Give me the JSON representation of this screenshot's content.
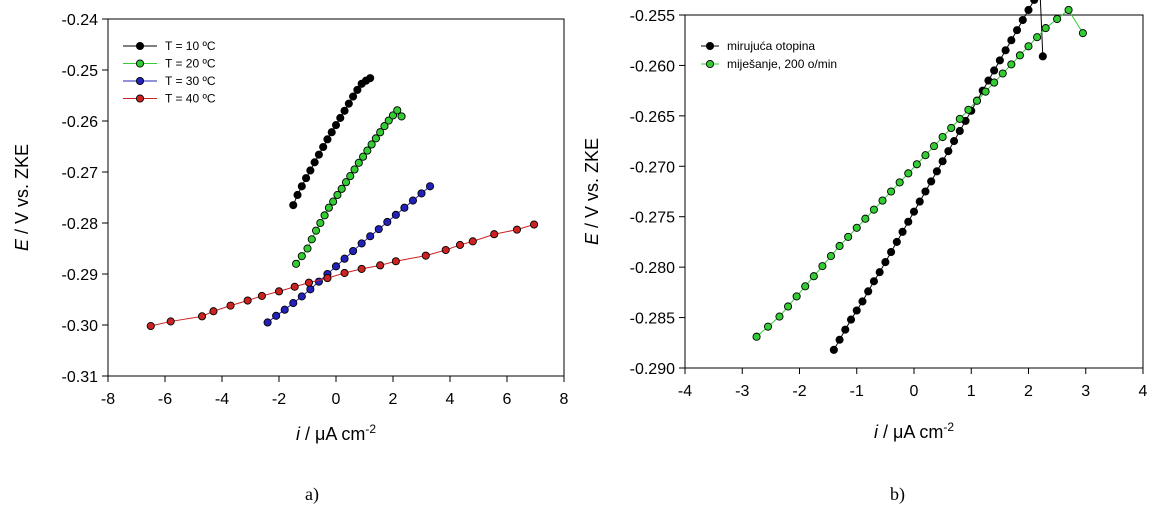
{
  "chart_data": [
    {
      "type": "line",
      "panel_label": "a)",
      "xlabel": {
        "var": "i",
        "rest": " / μA cm",
        "sup": "-2"
      },
      "ylabel": {
        "var": "E",
        "rest": " / V vs. ZKE"
      },
      "xlim": [
        -8,
        8
      ],
      "ylim": [
        -0.31,
        -0.24
      ],
      "xticks": [
        -8,
        -6,
        -4,
        -2,
        0,
        2,
        4,
        6,
        8
      ],
      "xtick_labels": [
        "-8",
        "-6",
        "-4",
        "-2",
        "0",
        "2",
        "4",
        "6",
        "8"
      ],
      "yticks": [
        -0.31,
        -0.3,
        -0.29,
        -0.28,
        -0.27,
        -0.26,
        -0.25,
        -0.24
      ],
      "ytick_labels": [
        "-0.31",
        "-0.30",
        "-0.29",
        "-0.28",
        "-0.27",
        "-0.26",
        "-0.25",
        "-0.24"
      ],
      "grid": false,
      "legend_position": "top-left",
      "series": [
        {
          "name": "T = 10 ºC",
          "color": "#000000",
          "marker_fill": "#000000",
          "line_color": "#000000",
          "x": [
            -1.5,
            -1.35,
            -1.2,
            -1.05,
            -0.9,
            -0.75,
            -0.6,
            -0.45,
            -0.3,
            -0.15,
            0.0,
            0.15,
            0.3,
            0.45,
            0.6,
            0.75,
            0.9,
            1.05,
            1.2
          ],
          "y": [
            -0.2765,
            -0.2745,
            -0.2728,
            -0.2712,
            -0.2697,
            -0.2681,
            -0.2666,
            -0.2651,
            -0.2636,
            -0.2622,
            -0.2608,
            -0.2594,
            -0.258,
            -0.2566,
            -0.2552,
            -0.2539,
            -0.2527,
            -0.2521,
            -0.2516
          ]
        },
        {
          "name": "T = 20 ºC",
          "color": "#33cc33",
          "marker_fill": "#33cc33",
          "line_color": "#33cc33",
          "x": [
            -1.4,
            -1.2,
            -1.0,
            -0.85,
            -0.7,
            -0.55,
            -0.4,
            -0.25,
            -0.1,
            0.05,
            0.2,
            0.35,
            0.5,
            0.65,
            0.8,
            0.95,
            1.1,
            1.25,
            1.4,
            1.55,
            1.7,
            1.85,
            2.0,
            2.15,
            2.3
          ],
          "y": [
            -0.288,
            -0.2865,
            -0.285,
            -0.2832,
            -0.2815,
            -0.28,
            -0.2785,
            -0.277,
            -0.2758,
            -0.2745,
            -0.2733,
            -0.272,
            -0.2708,
            -0.2695,
            -0.2682,
            -0.267,
            -0.2658,
            -0.2646,
            -0.2634,
            -0.2622,
            -0.261,
            -0.2599,
            -0.2589,
            -0.2579,
            -0.2591
          ]
        },
        {
          "name": "T = 30 ºC",
          "color": "#1a1aaa",
          "marker_fill": "#2222bb",
          "line_color": "#2222bb",
          "x": [
            -2.4,
            -2.1,
            -1.8,
            -1.5,
            -1.2,
            -0.9,
            -0.6,
            -0.3,
            0.0,
            0.3,
            0.6,
            0.9,
            1.2,
            1.5,
            1.8,
            2.1,
            2.4,
            2.7,
            3.0,
            3.3
          ],
          "y": [
            -0.2995,
            -0.2982,
            -0.297,
            -0.2957,
            -0.2944,
            -0.293,
            -0.2915,
            -0.29,
            -0.2885,
            -0.287,
            -0.2855,
            -0.284,
            -0.2826,
            -0.2812,
            -0.2798,
            -0.2784,
            -0.277,
            -0.2756,
            -0.2742,
            -0.2728
          ]
        },
        {
          "name": "T = 40 ºC",
          "color": "#cc2222",
          "marker_fill": "#cc2222",
          "line_color": "#cc2222",
          "x": [
            -6.5,
            -5.8,
            -4.7,
            -4.3,
            -3.7,
            -3.1,
            -2.6,
            -2.0,
            -1.45,
            -0.95,
            -0.3,
            0.3,
            0.9,
            1.55,
            2.1,
            3.15,
            3.85,
            4.35,
            4.8,
            5.55,
            6.35,
            6.95
          ],
          "y": [
            -0.3002,
            -0.2993,
            -0.2983,
            -0.2973,
            -0.2962,
            -0.2952,
            -0.2943,
            -0.2934,
            -0.2925,
            -0.2917,
            -0.2908,
            -0.2898,
            -0.289,
            -0.2883,
            -0.2875,
            -0.2864,
            -0.2853,
            -0.2843,
            -0.2836,
            -0.2822,
            -0.2813,
            -0.2803
          ]
        }
      ]
    },
    {
      "type": "line",
      "panel_label": "b)",
      "xlabel": {
        "var": "i",
        "rest": " / μA cm",
        "sup": "-2"
      },
      "ylabel": {
        "var": "E",
        "rest": " / V vs. ZKE"
      },
      "xlim": [
        -4,
        4
      ],
      "ylim": [
        -0.29,
        -0.255
      ],
      "xticks": [
        -4,
        -3,
        -2,
        -1,
        0,
        1,
        2,
        3,
        4
      ],
      "xtick_labels": [
        "-4",
        "-3",
        "-2",
        "-1",
        "0",
        "1",
        "2",
        "3",
        "4"
      ],
      "yticks": [
        -0.29,
        -0.285,
        -0.28,
        -0.275,
        -0.27,
        -0.265,
        -0.26,
        -0.255
      ],
      "ytick_labels": [
        "-0.290",
        "-0.285",
        "-0.280",
        "-0.275",
        "-0.270",
        "-0.265",
        "-0.260",
        "-0.255"
      ],
      "grid": false,
      "legend_position": "top-left",
      "series": [
        {
          "name": "mirujuća otopina",
          "color": "#000000",
          "marker_fill": "#000000",
          "line_color": "#000000",
          "x": [
            -1.4,
            -1.3,
            -1.2,
            -1.1,
            -1.0,
            -0.9,
            -0.8,
            -0.7,
            -0.6,
            -0.5,
            -0.4,
            -0.3,
            -0.2,
            -0.1,
            0.0,
            0.1,
            0.2,
            0.3,
            0.4,
            0.5,
            0.6,
            0.7,
            0.8,
            0.9,
            1.0,
            1.1,
            1.2,
            1.3,
            1.4,
            1.5,
            1.6,
            1.7,
            1.8,
            1.9,
            2.0,
            2.1,
            2.2,
            2.25
          ],
          "y": [
            -0.2882,
            -0.2872,
            -0.2862,
            -0.2852,
            -0.2843,
            -0.2834,
            -0.2824,
            -0.2814,
            -0.2805,
            -0.2795,
            -0.2785,
            -0.2775,
            -0.2765,
            -0.2755,
            -0.2745,
            -0.2735,
            -0.2725,
            -0.2715,
            -0.2705,
            -0.2695,
            -0.2685,
            -0.2675,
            -0.2665,
            -0.2655,
            -0.2645,
            -0.2635,
            -0.2625,
            -0.2615,
            -0.2605,
            -0.2595,
            -0.2585,
            -0.2575,
            -0.2565,
            -0.2555,
            -0.2545,
            -0.2535,
            -0.2525,
            -0.2591
          ]
        },
        {
          "name": "miješanje, 200 o/min",
          "color": "#33cc33",
          "marker_fill": "#33cc33",
          "line_color": "#33cc33",
          "x": [
            -2.75,
            -2.55,
            -2.35,
            -2.2,
            -2.05,
            -1.9,
            -1.75,
            -1.6,
            -1.45,
            -1.3,
            -1.15,
            -1.0,
            -0.85,
            -0.7,
            -0.55,
            -0.4,
            -0.25,
            -0.1,
            0.05,
            0.2,
            0.35,
            0.5,
            0.65,
            0.8,
            0.95,
            1.1,
            1.25,
            1.4,
            1.55,
            1.7,
            1.85,
            2.0,
            2.15,
            2.3,
            2.5,
            2.7,
            2.95
          ],
          "y": [
            -0.2869,
            -0.2859,
            -0.2849,
            -0.2839,
            -0.2829,
            -0.2819,
            -0.2809,
            -0.2799,
            -0.2789,
            -0.2779,
            -0.277,
            -0.2761,
            -0.2752,
            -0.2743,
            -0.2734,
            -0.2725,
            -0.2716,
            -0.2707,
            -0.2698,
            -0.2689,
            -0.268,
            -0.2671,
            -0.2662,
            -0.2653,
            -0.2644,
            -0.2635,
            -0.2626,
            -0.2617,
            -0.2608,
            -0.2599,
            -0.259,
            -0.2581,
            -0.2572,
            -0.2563,
            -0.2554,
            -0.2545,
            -0.2568
          ]
        }
      ]
    }
  ]
}
